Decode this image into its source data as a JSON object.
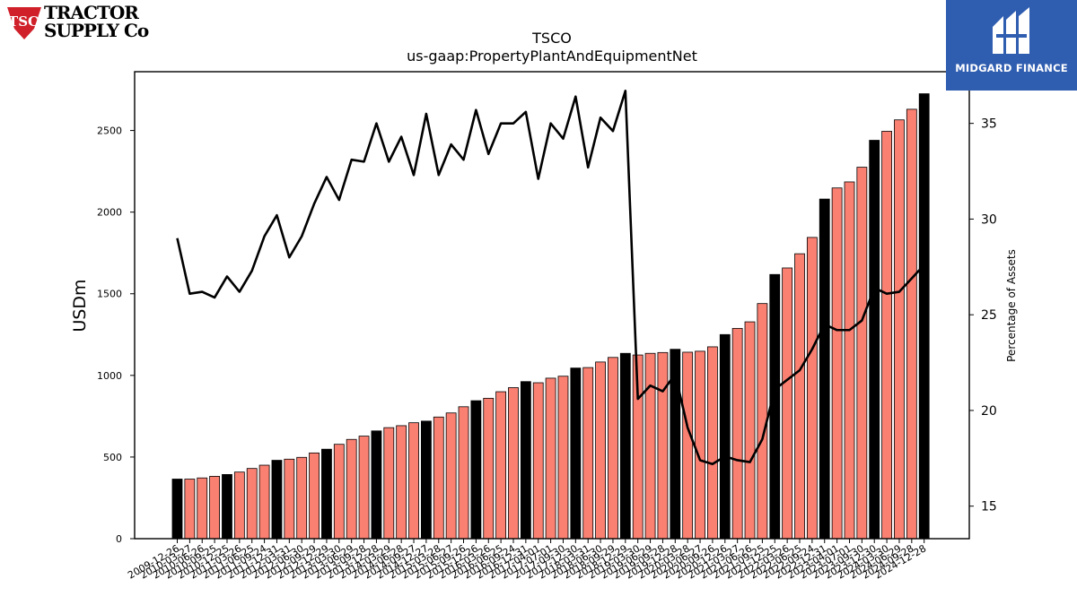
{
  "logos": {
    "left_badge": "TSC",
    "left_line1": "TRACTOR",
    "left_line2": "SUPPLY Co",
    "right": "MIDGARD FINANCE"
  },
  "chart_data": {
    "type": "bar",
    "title": "TSCO",
    "subtitle": "us-gaap:PropertyPlantAndEquipmentNet",
    "ylabel": "USDm",
    "y2label": "Percentage of Assets",
    "ylim": [
      0,
      2860
    ],
    "y2lim": [
      13.3,
      37.7
    ],
    "yticks": [
      0,
      500,
      1000,
      1500,
      2000,
      2500
    ],
    "y2ticks": [
      15,
      20,
      25,
      30,
      35
    ],
    "categories": [
      "2009-12-26",
      "2010-03-27",
      "2010-06-26",
      "2010-09-25",
      "2010-12-25",
      "2011-03-26",
      "2011-06-25",
      "2011-09-24",
      "2011-12-31",
      "2012-03-31",
      "2012-06-30",
      "2012-09-29",
      "2012-12-29",
      "2013-03-30",
      "2013-06-29",
      "2013-09-28",
      "2013-12-28",
      "2014-03-29",
      "2014-06-28",
      "2014-09-27",
      "2014-12-27",
      "2015-03-28",
      "2015-06-27",
      "2015-09-26",
      "2015-12-26",
      "2016-03-26",
      "2016-06-25",
      "2016-09-24",
      "2016-12-31",
      "2017-04-01",
      "2017-07-01",
      "2017-09-30",
      "2017-12-30",
      "2018-03-31",
      "2018-06-30",
      "2018-09-29",
      "2018-12-29",
      "2019-03-30",
      "2019-06-29",
      "2019-09-28",
      "2019-12-28",
      "2020-03-28",
      "2020-06-27",
      "2020-09-26",
      "2020-12-26",
      "2021-03-27",
      "2021-06-26",
      "2021-09-25",
      "2021-12-25",
      "2022-03-26",
      "2022-06-25",
      "2022-09-24",
      "2022-12-31",
      "2023-04-01",
      "2023-07-01",
      "2023-09-30",
      "2023-12-30",
      "2024-03-30",
      "2024-06-29",
      "2024-09-28",
      "2024-12-28"
    ],
    "x_tick_labels_shown": [
      "2009-12-26",
      "2010-03-27",
      "2010-06-26",
      "2010-09-25",
      "2010-12-25",
      "2011-03-26",
      "2011-06-25",
      "2011-09-24",
      "2011-12-31",
      "2012-03-31",
      "2012-06-30",
      "2012-09-29",
      "2012-12-29",
      "2013-03-30",
      "2013-06-29",
      "2013-09-28",
      "2013-12-28",
      "2014-03-29",
      "2014-06-28",
      "2014-09-27",
      "2014-12-27",
      "2015-03-28",
      "2015-06-27",
      "2015-09-26",
      "2015-12-26",
      "2016-03-26",
      "2016-06-25",
      "2016-09-24",
      "2016-12-31",
      "2017-04-01",
      "2017-07-01",
      "2017-09-30",
      "2017-12-30",
      "2018-03-31",
      "2018-06-30",
      "2018-09-29",
      "2018-12-29",
      "2019-03-30",
      "2019-06-29",
      "2019-09-28",
      "2019-12-28",
      "2020-03-28",
      "2020-06-27",
      "2020-09-26",
      "2020-12-26",
      "2021-03-27",
      "2021-06-26",
      "2021-09-25",
      "2021-12-25",
      "2022-03-26",
      "2022-06-25",
      "2022-09-24",
      "2022-12-31",
      "2023-04-01",
      "2023-07-01",
      "2023-09-30",
      "2023-12-30",
      "2024-03-30",
      "2024-06-29",
      "2024-09-28",
      "2024-12-28"
    ],
    "values": [
      365,
      365,
      372,
      382,
      393,
      408,
      430,
      450,
      480,
      487,
      498,
      525,
      548,
      578,
      608,
      628,
      660,
      680,
      692,
      710,
      720,
      745,
      770,
      808,
      845,
      860,
      900,
      925,
      962,
      955,
      983,
      995,
      1045,
      1048,
      1082,
      1110,
      1135,
      1125,
      1135,
      1140,
      1160,
      1142,
      1148,
      1175,
      1250,
      1288,
      1328,
      1440,
      1618,
      1658,
      1745,
      1845,
      2080,
      2148,
      2185,
      2275,
      2440,
      2495,
      2565,
      2630,
      2725
    ],
    "year_end": [
      true,
      false,
      false,
      false,
      true,
      false,
      false,
      false,
      true,
      false,
      false,
      false,
      true,
      false,
      false,
      false,
      true,
      false,
      false,
      false,
      true,
      false,
      false,
      false,
      true,
      false,
      false,
      false,
      true,
      false,
      false,
      false,
      true,
      false,
      false,
      false,
      true,
      false,
      false,
      false,
      true,
      false,
      false,
      false,
      true,
      false,
      false,
      false,
      true,
      false,
      false,
      false,
      true,
      false,
      false,
      false,
      true,
      false,
      false,
      false,
      true
    ],
    "pct_assets": [
      29.0,
      26.1,
      26.2,
      25.9,
      27.0,
      26.2,
      27.3,
      29.1,
      30.2,
      28.0,
      29.1,
      30.8,
      32.2,
      31.0,
      33.1,
      33.0,
      35.0,
      33.0,
      34.3,
      32.3,
      35.5,
      32.3,
      33.9,
      33.1,
      35.7,
      33.4,
      35.0,
      35.0,
      35.6,
      32.1,
      35.0,
      34.2,
      36.4,
      32.7,
      35.3,
      34.6,
      36.7,
      20.6,
      21.3,
      21.0,
      21.9,
      19.1,
      17.4,
      17.2,
      17.6,
      17.4,
      17.3,
      18.5,
      21.1,
      21.6,
      22.1,
      23.2,
      24.5,
      24.2,
      24.2,
      24.7,
      26.4,
      26.1,
      26.2,
      26.9,
      27.6
    ],
    "colors": {
      "year_end_bar": "#000000",
      "quarter_bar": "#fa8072",
      "bar_edge": "#000000",
      "line": "#000000"
    }
  }
}
